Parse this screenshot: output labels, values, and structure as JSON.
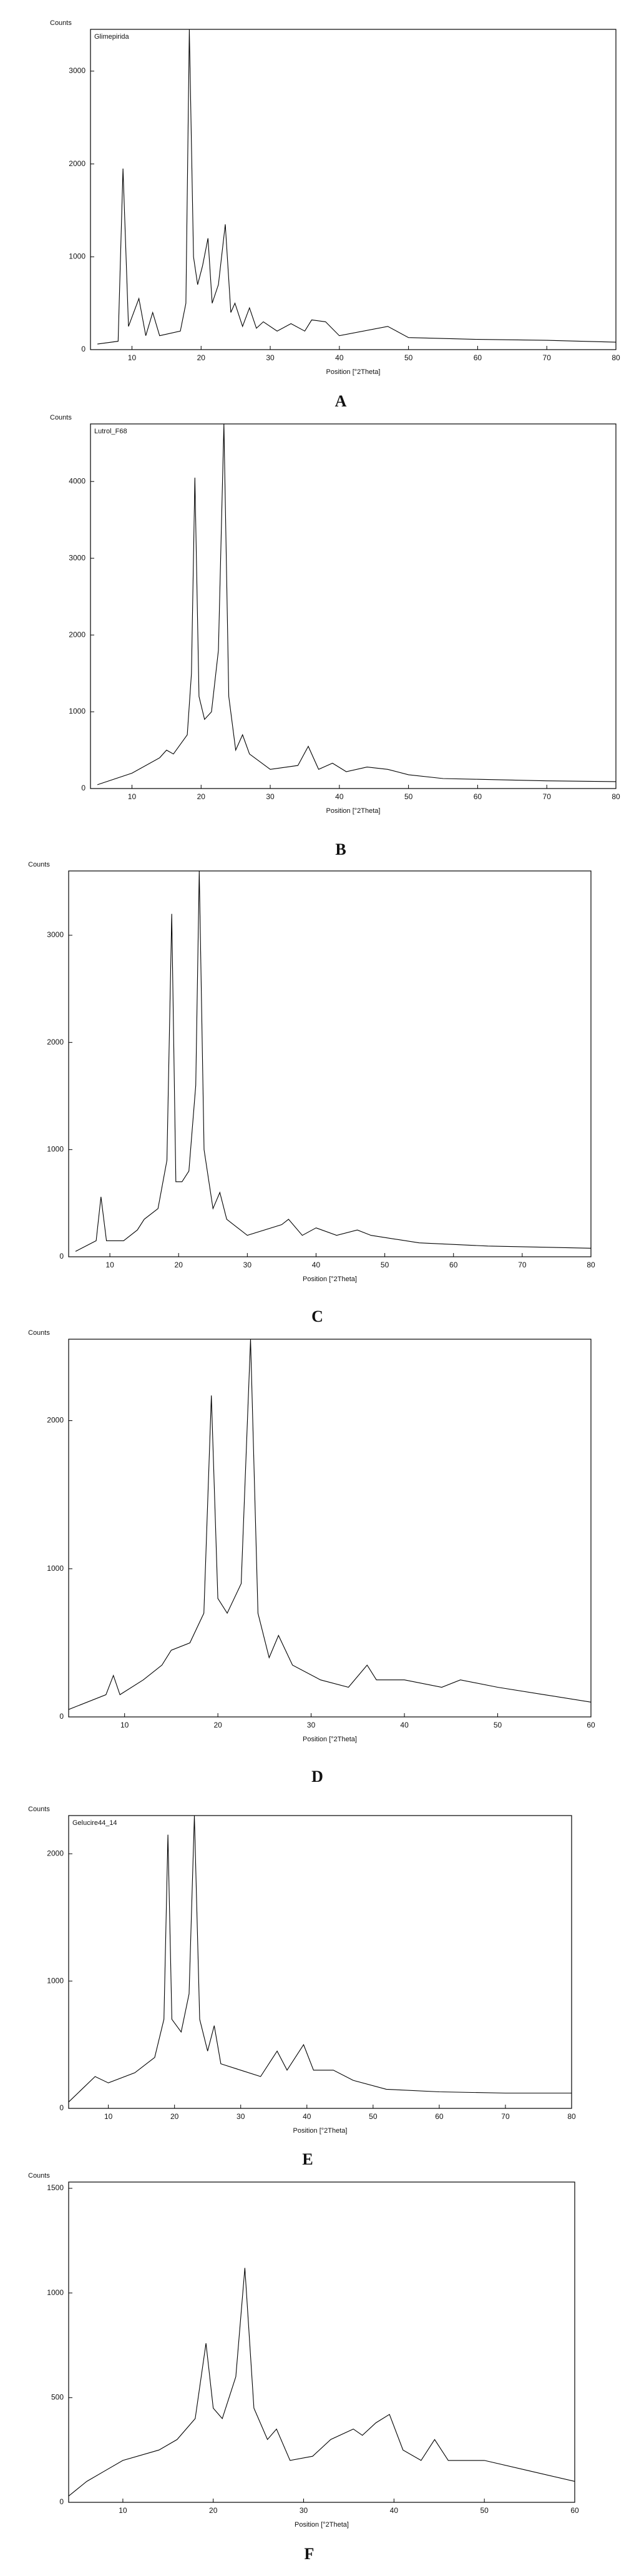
{
  "chart_data": [
    {
      "type": "line",
      "ylabel": "Counts",
      "label": "Glimepirida",
      "xlabel": "Position [°2Theta]",
      "caption": "A",
      "color": "#000000",
      "x": [
        5,
        8,
        8.7,
        9.5,
        11,
        12,
        13,
        14,
        17,
        17.8,
        18.3,
        18.9,
        19.5,
        20.2,
        21,
        21.6,
        22.5,
        23.5,
        24.3,
        24.9,
        26,
        27,
        28,
        29,
        31,
        33,
        35,
        36,
        38,
        40,
        47,
        50,
        60,
        70,
        80
      ],
      "values": [
        60,
        90,
        1950,
        250,
        550,
        150,
        400,
        150,
        200,
        500,
        3450,
        1000,
        700,
        900,
        1200,
        500,
        700,
        1350,
        400,
        500,
        250,
        450,
        230,
        300,
        200,
        280,
        200,
        320,
        300,
        150,
        250,
        130,
        110,
        100,
        80
      ],
      "xlim": [
        4,
        80
      ],
      "ylim": [
        0,
        3450
      ],
      "xticks": [
        10,
        20,
        30,
        40,
        50,
        60,
        70,
        80
      ],
      "yticks": [
        0,
        1000,
        2000,
        3000
      ]
    },
    {
      "type": "line",
      "ylabel": "Counts",
      "label": "Lutrol_F68",
      "xlabel": "Position [°2Theta]",
      "caption": "B",
      "color": "#000000",
      "x": [
        5,
        10,
        14,
        15,
        16,
        18,
        18.6,
        19.1,
        19.7,
        20.5,
        21.5,
        22.5,
        23.3,
        24,
        25,
        26,
        27,
        30,
        34,
        35.5,
        37,
        39,
        41,
        44,
        47,
        50,
        55,
        60,
        70,
        80
      ],
      "values": [
        50,
        200,
        400,
        500,
        450,
        700,
        1500,
        4050,
        1200,
        900,
        1000,
        1800,
        4750,
        1200,
        500,
        700,
        450,
        250,
        300,
        550,
        250,
        330,
        220,
        280,
        250,
        180,
        130,
        120,
        100,
        90
      ],
      "xlim": [
        4,
        80
      ],
      "ylim": [
        0,
        4750
      ],
      "xticks": [
        10,
        20,
        30,
        40,
        50,
        60,
        70,
        80
      ],
      "yticks": [
        0,
        1000,
        2000,
        3000,
        4000
      ]
    },
    {
      "type": "line",
      "ylabel": "Counts",
      "xlabel": "Position [°2Theta]",
      "caption": "C",
      "color": "#000000",
      "x": [
        5,
        8,
        8.7,
        9.5,
        12,
        14,
        15,
        17,
        18.3,
        19,
        19.6,
        20.5,
        21.5,
        22.5,
        23,
        23.7,
        25,
        26,
        27,
        30,
        35,
        36,
        38,
        40,
        43,
        46,
        48,
        55,
        65,
        80
      ],
      "values": [
        50,
        150,
        560,
        150,
        150,
        250,
        350,
        450,
        900,
        3200,
        700,
        700,
        800,
        1600,
        3600,
        1000,
        450,
        600,
        350,
        200,
        300,
        350,
        200,
        270,
        200,
        250,
        200,
        130,
        100,
        80
      ],
      "xlim": [
        4,
        80
      ],
      "ylim": [
        0,
        3600
      ],
      "xticks": [
        10,
        20,
        30,
        40,
        50,
        60,
        70,
        80
      ],
      "yticks": [
        0,
        1000,
        2000,
        3000
      ]
    },
    {
      "type": "line",
      "ylabel": "Counts",
      "xlabel": "Position [°2Theta]",
      "caption": "D",
      "color": "#000000",
      "x": [
        4,
        8,
        8.8,
        9.5,
        12,
        14,
        15,
        17,
        18.5,
        19.3,
        20,
        21,
        22.5,
        23.5,
        24.3,
        25.5,
        26.5,
        28,
        31,
        34,
        36,
        37,
        40,
        44,
        46,
        50,
        55,
        60
      ],
      "values": [
        50,
        150,
        280,
        150,
        250,
        350,
        450,
        500,
        700,
        2170,
        800,
        700,
        900,
        2550,
        700,
        400,
        550,
        350,
        250,
        200,
        350,
        250,
        250,
        200,
        250,
        200,
        150,
        100
      ],
      "xlim": [
        4,
        60
      ],
      "ylim": [
        0,
        2550
      ],
      "xticks": [
        10,
        20,
        30,
        40,
        50,
        60
      ],
      "yticks": [
        0,
        1000,
        2000
      ]
    },
    {
      "type": "line",
      "ylabel": "Counts",
      "label": "Gelucire44_14",
      "xlabel": "Position [°2Theta]",
      "caption": "E",
      "color": "#000000",
      "x": [
        4,
        8,
        10,
        14,
        17,
        18.4,
        19,
        19.6,
        21,
        22.2,
        23,
        23.8,
        25,
        26,
        27,
        30,
        33,
        35.5,
        37,
        39.5,
        41,
        44,
        47,
        52,
        60,
        70,
        80
      ],
      "values": [
        50,
        250,
        200,
        280,
        400,
        700,
        2150,
        700,
        600,
        900,
        2300,
        700,
        450,
        650,
        350,
        300,
        250,
        450,
        300,
        500,
        300,
        300,
        220,
        150,
        130,
        120,
        120
      ],
      "xlim": [
        4,
        80
      ],
      "ylim": [
        0,
        2300
      ],
      "xticks": [
        10,
        20,
        30,
        40,
        50,
        60,
        70,
        80
      ],
      "yticks": [
        0,
        1000,
        2000
      ]
    },
    {
      "type": "line",
      "ylabel": "Counts",
      "xlabel": "Position [°2Theta]",
      "caption": "F",
      "color": "#000000",
      "x": [
        4,
        6,
        8,
        10,
        14,
        16,
        18,
        19.2,
        20,
        21,
        22.5,
        23.5,
        24.5,
        26,
        27,
        28.5,
        31,
        33,
        35.5,
        36.5,
        38,
        39.5,
        41,
        43,
        44.5,
        46,
        50,
        55,
        60
      ],
      "values": [
        30,
        100,
        150,
        200,
        250,
        300,
        400,
        760,
        450,
        400,
        600,
        1120,
        450,
        300,
        350,
        200,
        220,
        300,
        350,
        320,
        380,
        420,
        250,
        200,
        300,
        200,
        200,
        150,
        100
      ],
      "xlim": [
        4,
        60
      ],
      "ylim": [
        0,
        1530
      ],
      "xticks": [
        10,
        20,
        30,
        40,
        50,
        60
      ],
      "yticks": [
        0,
        500,
        1000,
        1500
      ]
    }
  ]
}
